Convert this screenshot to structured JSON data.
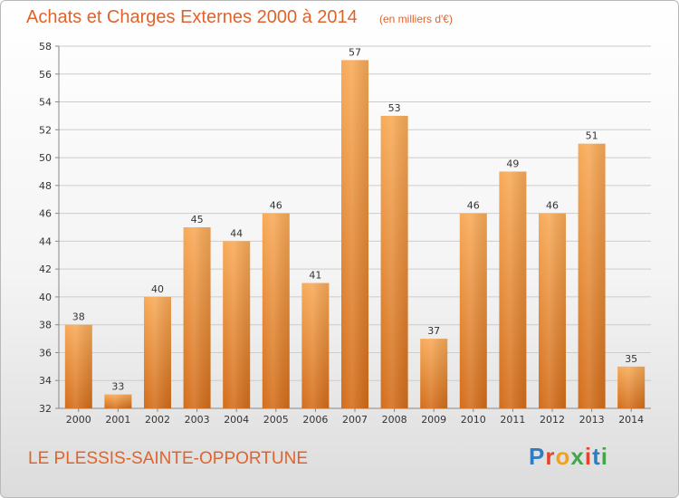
{
  "header": {
    "title": "Achats et Charges Externes 2000 à 2014",
    "subtitle": "(en milliers d'€)"
  },
  "footer": {
    "commune": "LE PLESSIS-SAINTE-OPPORTUNE",
    "logo_text": "Proxiti"
  },
  "colors": {
    "accent": "#e0632a",
    "bar_top": "#f8aa58",
    "bar_bottom": "#d36d1a",
    "grid": "#cccccc"
  },
  "chart_data": {
    "type": "bar",
    "title": "Achats et Charges Externes 2000 à 2014",
    "subtitle": "(en milliers d'€)",
    "categories": [
      "2000",
      "2001",
      "2002",
      "2003",
      "2004",
      "2005",
      "2006",
      "2007",
      "2008",
      "2009",
      "2010",
      "2011",
      "2012",
      "2013",
      "2014"
    ],
    "values": [
      38,
      33,
      40,
      45,
      44,
      46,
      41,
      57,
      53,
      37,
      46,
      49,
      46,
      51,
      35
    ],
    "ylim": [
      32,
      58
    ],
    "yticks": [
      32,
      34,
      36,
      38,
      40,
      42,
      44,
      46,
      48,
      50,
      52,
      54,
      56,
      58
    ],
    "grid": true,
    "xlabel": "",
    "ylabel": ""
  }
}
